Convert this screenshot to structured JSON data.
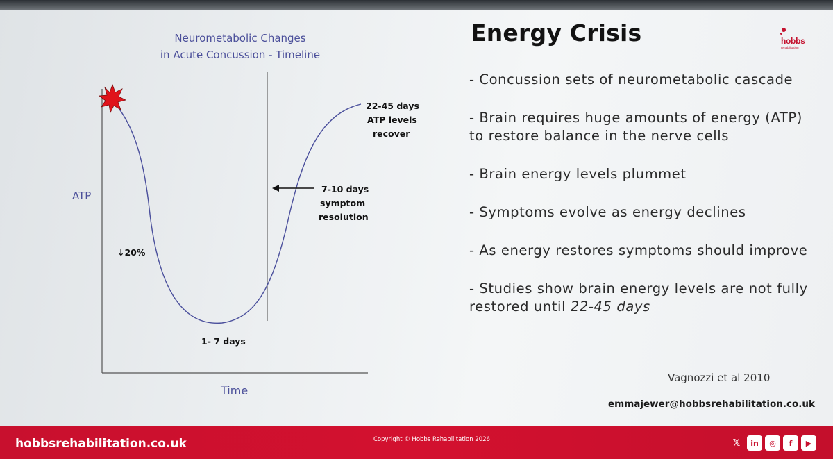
{
  "chart": {
    "title_line1": "Neurometabolic Changes",
    "title_line2": "in Acute Concussion - Timeline",
    "y_label": "ATP",
    "x_label": "Time",
    "annotations": {
      "drop": "↓20%",
      "trough": "1- 7 days",
      "symptom_line1": "7-10 days",
      "symptom_line2": "symptom",
      "symptom_line3": "resolution",
      "recover_line1": "22-45 days",
      "recover_line2": "ATP levels",
      "recover_line3": "recover"
    },
    "colors": {
      "curve": "#4a4f9c",
      "axis": "#555555",
      "burst": "#e0131b"
    }
  },
  "chart_data": {
    "type": "line",
    "title": "Neurometabolic Changes in Acute Concussion - Timeline",
    "xlabel": "Time",
    "ylabel": "ATP",
    "grid": false,
    "legend": "none",
    "annotations": [
      "↓20%",
      "1- 7 days",
      "7-10 days symptom resolution",
      "22-45 days ATP levels recover"
    ]
  },
  "slide": {
    "heading": "Energy Crisis",
    "bullets": [
      "- Concussion sets of neurometabolic cascade",
      "- Brain requires huge amounts of energy (ATP) to restore balance in the nerve cells",
      "- Brain energy levels plummet",
      "- Symptoms evolve as energy declines",
      "- As energy restores symptoms should improve",
      "- Studies show brain energy levels are not fully restored until"
    ],
    "bullet_last_emph": "22-45 days",
    "citation": "Vagnozzi et al 2010",
    "email": "emmajewer@hobbsrehabilitation.co.uk"
  },
  "logo": {
    "word": "hobbs",
    "tagline": "rehabilitation",
    "color": "#c4122f"
  },
  "footer": {
    "site": "hobbsrehabilitation.co.uk",
    "copyright": "Copyright © Hobbs Rehabilitation 2026",
    "social_icons": [
      "x-icon",
      "linkedin-icon",
      "instagram-icon",
      "facebook-icon",
      "youtube-icon"
    ],
    "social_glyphs": [
      "𝕏",
      "in",
      "◎",
      "f",
      "▶"
    ],
    "color": "#c8102e"
  }
}
